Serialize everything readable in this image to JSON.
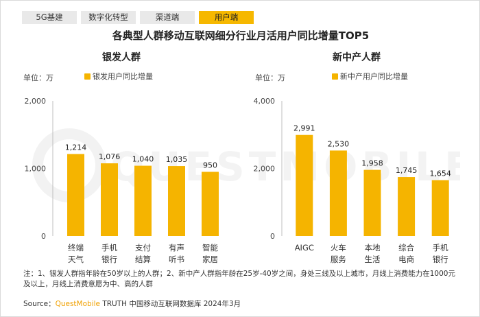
{
  "tabs": [
    {
      "label": "5G基建",
      "active": false
    },
    {
      "label": "数字化转型",
      "active": false
    },
    {
      "label": "渠道端",
      "active": false
    },
    {
      "label": "用户端",
      "active": true
    }
  ],
  "title": "各典型人群移动互联网细分行业月活用户同比增量TOP5",
  "accent_color": "#f5b400",
  "watermark": "QUESTMOBILE",
  "chart_data": [
    {
      "type": "bar",
      "title": "银发人群",
      "unit_label": "单位：万",
      "legend": "银发用户同比增量",
      "categories": [
        "终端天气",
        "手机银行",
        "支付结算",
        "有声听书",
        "智能家居"
      ],
      "category_lines": [
        [
          "终端",
          "天气"
        ],
        [
          "手机",
          "银行"
        ],
        [
          "支付",
          "结算"
        ],
        [
          "有声",
          "听书"
        ],
        [
          "智能",
          "家居"
        ]
      ],
      "series": [
        {
          "name": "银发用户同比增量",
          "values": [
            1214,
            1076,
            1040,
            1035,
            950
          ]
        }
      ],
      "value_labels": [
        "1,214",
        "1,076",
        "1,040",
        "1,035",
        "950"
      ],
      "y_ticks": [
        0,
        1000,
        2000
      ],
      "y_tick_labels": [
        "0",
        "1,000",
        "2,000"
      ],
      "ylim": [
        0,
        2000
      ],
      "grid": false
    },
    {
      "type": "bar",
      "title": "新中产人群",
      "unit_label": "单位：万",
      "legend": "新中产用户同比增量",
      "categories": [
        "AIGC",
        "火车服务",
        "本地生活",
        "综合电商",
        "手机银行"
      ],
      "category_lines": [
        [
          "AIGC"
        ],
        [
          "火车",
          "服务"
        ],
        [
          "本地",
          "生活"
        ],
        [
          "综合",
          "电商"
        ],
        [
          "手机",
          "银行"
        ]
      ],
      "series": [
        {
          "name": "新中产用户同比增量",
          "values": [
            2991,
            2530,
            1958,
            1745,
            1654
          ]
        }
      ],
      "value_labels": [
        "2,991",
        "2,530",
        "1,958",
        "1,745",
        "1,654"
      ],
      "y_ticks": [
        0,
        2000,
        4000
      ],
      "y_tick_labels": [
        "0",
        "2,000",
        "4,000"
      ],
      "ylim": [
        0,
        4000
      ],
      "grid": false
    }
  ],
  "notes": "注：1、银发人群指年龄在50岁以上的人群；2、新中产人群指年龄在25岁-40岁之间，身处三线及以上城市，月线上消费能力在1000元及以上，月线上消费意愿为中、高的人群",
  "source": {
    "prefix": "Source：",
    "brand": "QuestMobile",
    "suffix": " TRUTH 中国移动互联网数据库 2024年3月"
  }
}
